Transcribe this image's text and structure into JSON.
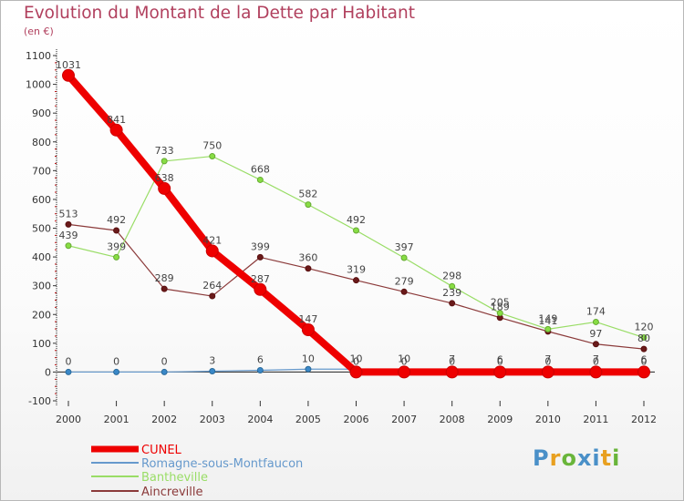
{
  "title": "Evolution du Montant de la Dette par Habitant",
  "subtitle": "(en €)",
  "logo": {
    "text": "Proxiti"
  },
  "chart_data": {
    "type": "line",
    "title": "Evolution du Montant de la Dette par Habitant",
    "ylabel": "(en €)",
    "xlabel": "",
    "x": [
      "2000",
      "2001",
      "2002",
      "2003",
      "2004",
      "2005",
      "2006",
      "2007",
      "2008",
      "2009",
      "2010",
      "2011",
      "2012"
    ],
    "ylim": [
      -100,
      1100
    ],
    "yticks": [
      -100,
      0,
      100,
      200,
      300,
      400,
      500,
      600,
      700,
      800,
      900,
      1000,
      1100
    ],
    "series": [
      {
        "name": "CUNEL",
        "color": "#ee0000",
        "values": [
          1031,
          841,
          638,
          421,
          287,
          147,
          0,
          0,
          0,
          0,
          0,
          0,
          0
        ]
      },
      {
        "name": "Romagne-sous-Montfaucon",
        "color": "#6699cc",
        "values": [
          0,
          0,
          0,
          3,
          6,
          10,
          10,
          10,
          7,
          6,
          7,
          7,
          6
        ]
      },
      {
        "name": "Bantheville",
        "color": "#99dd66",
        "values": [
          439,
          399,
          733,
          750,
          668,
          582,
          492,
          397,
          298,
          205,
          149,
          174,
          120
        ]
      },
      {
        "name": "Aincreville",
        "color": "#8b3a3a",
        "values": [
          513,
          492,
          289,
          264,
          399,
          360,
          319,
          279,
          239,
          189,
          141,
          97,
          80
        ]
      }
    ],
    "data_labels": [
      [
        "1031",
        "841",
        "638",
        "421",
        "287",
        "147",
        "0",
        "0",
        "0",
        "0",
        "0",
        "0",
        "0"
      ],
      [
        "0",
        "0",
        "0",
        "3",
        "6",
        "10",
        "10",
        "10",
        "7",
        "6",
        "7",
        "7",
        "6"
      ],
      [
        "439",
        "399",
        "733",
        "750",
        "668",
        "582",
        "492",
        "397",
        "298",
        "205",
        "149",
        "174",
        "120"
      ],
      [
        "513",
        "492",
        "289",
        "264",
        "399",
        "360",
        "319",
        "279",
        "239",
        "189",
        "141",
        "97",
        "80"
      ]
    ],
    "legend_position": "bottom-left",
    "grid": false
  }
}
